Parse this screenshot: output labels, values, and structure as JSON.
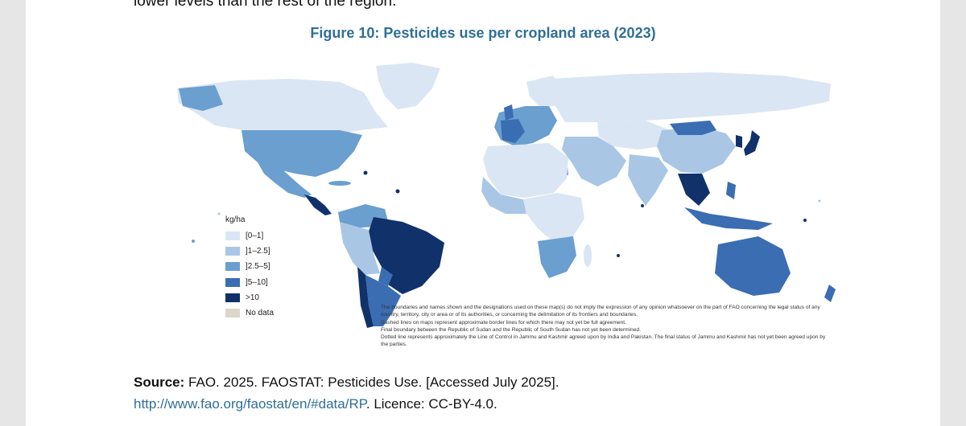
{
  "previous_text": "lower levels than the rest of the region.",
  "figure_title": "Figure 10: Pesticides use per cropland area (2023)",
  "legend": {
    "title": "kg/ha",
    "items": [
      {
        "label": "[0–1]",
        "color": "#dae6f3"
      },
      {
        "label": "]1–2.5]",
        "color": "#a9c7e5"
      },
      {
        "label": "]2.5–5]",
        "color": "#6a9fd0"
      },
      {
        "label": "]5–10]",
        "color": "#3b6db2"
      },
      {
        "label": ">10",
        "color": "#11316b"
      },
      {
        "label": "No data",
        "color": "#ddd6c9"
      }
    ]
  },
  "disclaimer": [
    "The boundaries and names shown and the designations used on these map(s) do not imply the expression of any opinion whatsoever on the part of FAO concerning the legal status of any country, territory, city or area or of its authorities, or concerning the delimitation of its frontiers and boundaries.",
    "Dashed lines on maps represent approximate border lines for which there may not yet be full agreement.",
    "Final boundary between the Republic of Sudan and the Republic of South Sudan has not yet been determined.",
    "Dotted line represents approximately the Line of Control in Jammu and Kashmir agreed upon by India and Pakistan. The final status of Jammu and Kashmir has not yet been agreed upon by the parties."
  ],
  "source": {
    "label": "Source:",
    "text": "FAO. 2025. FAOSTAT: Pesticides Use. [Accessed July 2025].",
    "link": "http://www.fao.org/faostat/en/#data/RP",
    "licence": ". Licence: CC-BY-4.0."
  }
}
